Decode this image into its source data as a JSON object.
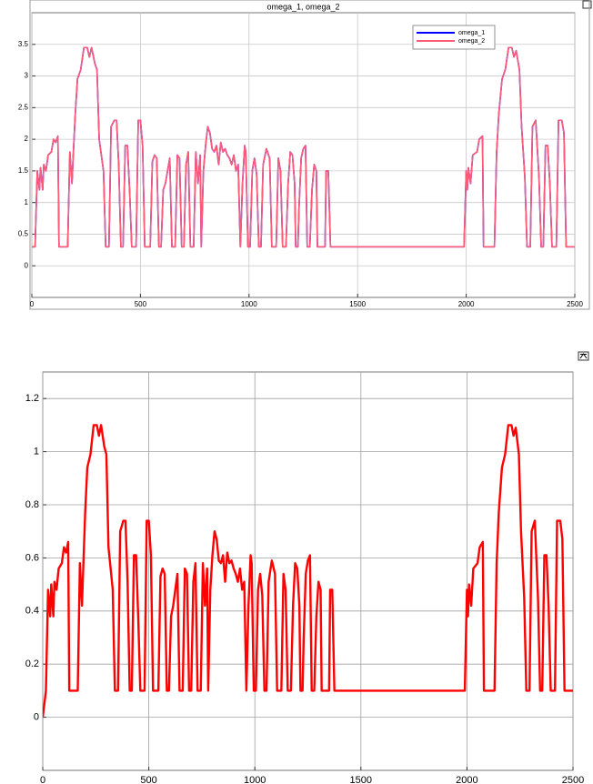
{
  "chart_data": [
    {
      "type": "line",
      "title": "omega_1, omega_2",
      "x": [
        0,
        15,
        25,
        35,
        40,
        50,
        55,
        65,
        75,
        90,
        100,
        110,
        120,
        125,
        165,
        175,
        185,
        190,
        200,
        210,
        225,
        240,
        255,
        265,
        275,
        290,
        300,
        310,
        330,
        340,
        355,
        365,
        380,
        390,
        400,
        410,
        420,
        430,
        440,
        450,
        460,
        480,
        490,
        500,
        510,
        520,
        545,
        555,
        565,
        575,
        585,
        595,
        605,
        615,
        625,
        635,
        645,
        660,
        670,
        680,
        690,
        700,
        710,
        720,
        730,
        745,
        755,
        765,
        775,
        780,
        790,
        800,
        810,
        820,
        830,
        840,
        850,
        860,
        870,
        880,
        890,
        900,
        910,
        920,
        930,
        940,
        950,
        960,
        970,
        980,
        985,
        995,
        1005,
        1015,
        1025,
        1035,
        1045,
        1055,
        1065,
        1080,
        1095,
        1105,
        1125,
        1135,
        1145,
        1155,
        1170,
        1180,
        1190,
        1200,
        1210,
        1215,
        1225,
        1230,
        1240,
        1250,
        1260,
        1268,
        1280,
        1290,
        1300,
        1310,
        1315,
        1350,
        1355,
        1365,
        1375,
        1990,
        2000,
        2005,
        2010,
        2020,
        2030,
        2050,
        2060,
        2075,
        2080,
        2130,
        2140,
        2150,
        2165,
        2180,
        2195,
        2210,
        2220,
        2230,
        2245,
        2255,
        2270,
        2280,
        2295,
        2305,
        2320,
        2335,
        2345,
        2355,
        2365,
        2375,
        2385,
        2395,
        2415,
        2425,
        2440,
        2450,
        2460,
        2500
      ],
      "series": [
        {
          "name": "omega_1",
          "color": "#0000ff",
          "values": [
            0.3,
            0.3,
            1.5,
            1.2,
            1.55,
            1.2,
            1.6,
            1.5,
            1.75,
            1.8,
            2.0,
            1.95,
            2.05,
            0.3,
            0.3,
            1.8,
            1.3,
            1.7,
            2.4,
            2.95,
            3.1,
            3.45,
            3.45,
            3.3,
            3.45,
            3.2,
            3.1,
            2.0,
            1.5,
            0.3,
            0.3,
            2.2,
            2.3,
            2.3,
            1.6,
            0.3,
            0.3,
            1.9,
            1.9,
            1.2,
            0.3,
            0.3,
            2.3,
            2.3,
            1.9,
            0.3,
            0.3,
            1.65,
            1.75,
            1.7,
            0.3,
            0.3,
            1.2,
            1.3,
            1.5,
            1.7,
            0.3,
            0.3,
            1.75,
            1.7,
            0.3,
            0.3,
            1.6,
            1.8,
            0.3,
            0.3,
            1.8,
            1.3,
            1.75,
            0.3,
            1.5,
            1.9,
            2.2,
            2.1,
            1.85,
            1.8,
            1.9,
            1.6,
            1.95,
            1.8,
            1.85,
            1.75,
            1.7,
            1.6,
            1.75,
            1.5,
            1.6,
            0.3,
            1.3,
            1.9,
            1.8,
            0.3,
            0.3,
            1.5,
            1.7,
            1.45,
            0.3,
            0.3,
            1.6,
            1.85,
            1.7,
            0.3,
            0.3,
            1.7,
            1.5,
            0.3,
            0.3,
            1.3,
            1.8,
            1.75,
            1.3,
            0.3,
            0.3,
            0.9,
            1.7,
            1.85,
            1.9,
            0.3,
            0.3,
            1.2,
            1.6,
            1.5,
            0.3,
            0.3,
            1.5,
            1.5,
            0.3,
            0.3,
            1.5,
            1.2,
            1.55,
            1.3,
            1.75,
            1.8,
            2.0,
            2.05,
            0.3,
            0.3,
            1.8,
            2.4,
            2.95,
            3.1,
            3.45,
            3.45,
            3.3,
            3.4,
            3.1,
            2.2,
            1.4,
            0.3,
            0.3,
            2.2,
            2.3,
            1.4,
            0.3,
            0.3,
            1.9,
            1.9,
            1.3,
            0.3,
            0.3,
            2.3,
            2.3,
            2.1,
            0.3,
            0.3
          ]
        },
        {
          "name": "omega_2",
          "color": "#ff5a78",
          "values": [
            0.3,
            0.3,
            1.5,
            1.2,
            1.55,
            1.2,
            1.6,
            1.5,
            1.75,
            1.8,
            2.0,
            1.95,
            2.05,
            0.3,
            0.3,
            1.8,
            1.3,
            1.7,
            2.4,
            2.95,
            3.1,
            3.45,
            3.45,
            3.3,
            3.45,
            3.2,
            3.1,
            2.0,
            1.5,
            0.3,
            0.3,
            2.2,
            2.3,
            2.3,
            1.6,
            0.3,
            0.3,
            1.9,
            1.9,
            1.2,
            0.3,
            0.3,
            2.3,
            2.3,
            1.9,
            0.3,
            0.3,
            1.65,
            1.75,
            1.7,
            0.3,
            0.3,
            1.2,
            1.3,
            1.5,
            1.7,
            0.3,
            0.3,
            1.75,
            1.7,
            0.3,
            0.3,
            1.6,
            1.8,
            0.3,
            0.3,
            1.8,
            1.3,
            1.75,
            0.3,
            1.5,
            1.9,
            2.2,
            2.1,
            1.85,
            1.8,
            1.9,
            1.6,
            1.95,
            1.8,
            1.85,
            1.75,
            1.7,
            1.6,
            1.75,
            1.5,
            1.6,
            0.3,
            1.3,
            1.9,
            1.8,
            0.3,
            0.3,
            1.5,
            1.7,
            1.45,
            0.3,
            0.3,
            1.6,
            1.85,
            1.7,
            0.3,
            0.3,
            1.7,
            1.5,
            0.3,
            0.3,
            1.3,
            1.8,
            1.75,
            1.3,
            0.3,
            0.3,
            0.9,
            1.7,
            1.85,
            1.9,
            0.3,
            0.3,
            1.2,
            1.6,
            1.5,
            0.3,
            0.3,
            1.5,
            1.5,
            0.3,
            0.3,
            1.5,
            1.2,
            1.55,
            1.3,
            1.75,
            1.8,
            2.0,
            2.05,
            0.3,
            0.3,
            1.8,
            2.4,
            2.95,
            3.1,
            3.45,
            3.45,
            3.3,
            3.4,
            3.1,
            2.2,
            1.4,
            0.3,
            0.3,
            2.2,
            2.3,
            1.4,
            0.3,
            0.3,
            1.9,
            1.9,
            1.3,
            0.3,
            0.3,
            2.3,
            2.3,
            2.1,
            0.3,
            0.3
          ]
        }
      ],
      "xlim": [
        0,
        2500
      ],
      "xticks": [
        0,
        500,
        1000,
        1500,
        2000,
        2500
      ],
      "ylim": [
        -0.5,
        4
      ],
      "yticks": [
        0,
        0.5,
        1,
        1.5,
        2,
        2.5,
        3,
        3.5
      ],
      "grid": true,
      "legend": "upper right"
    },
    {
      "type": "line",
      "x": [
        0,
        15,
        25,
        35,
        40,
        50,
        55,
        65,
        75,
        90,
        100,
        110,
        120,
        125,
        165,
        175,
        185,
        190,
        200,
        210,
        225,
        240,
        255,
        265,
        275,
        290,
        300,
        310,
        330,
        340,
        355,
        365,
        380,
        390,
        400,
        410,
        420,
        430,
        440,
        450,
        460,
        480,
        490,
        500,
        510,
        520,
        545,
        555,
        565,
        575,
        585,
        595,
        605,
        615,
        625,
        635,
        645,
        660,
        670,
        680,
        690,
        700,
        710,
        720,
        730,
        745,
        755,
        765,
        775,
        780,
        790,
        800,
        810,
        820,
        830,
        840,
        850,
        860,
        870,
        880,
        890,
        900,
        910,
        920,
        930,
        940,
        950,
        960,
        970,
        980,
        985,
        995,
        1005,
        1015,
        1025,
        1035,
        1045,
        1055,
        1065,
        1080,
        1095,
        1105,
        1125,
        1135,
        1145,
        1155,
        1170,
        1180,
        1190,
        1200,
        1210,
        1215,
        1225,
        1230,
        1240,
        1250,
        1260,
        1268,
        1280,
        1290,
        1300,
        1310,
        1315,
        1350,
        1355,
        1365,
        1375,
        1990,
        2000,
        2005,
        2010,
        2020,
        2030,
        2050,
        2060,
        2075,
        2080,
        2130,
        2140,
        2150,
        2165,
        2180,
        2195,
        2210,
        2220,
        2230,
        2245,
        2255,
        2270,
        2280,
        2295,
        2305,
        2320,
        2335,
        2345,
        2355,
        2365,
        2375,
        2385,
        2395,
        2415,
        2425,
        2440,
        2450,
        2460,
        2500
      ],
      "series": [
        {
          "color": "#ff0000",
          "values": [
            0,
            0.1,
            0.48,
            0.38,
            0.5,
            0.38,
            0.51,
            0.48,
            0.56,
            0.58,
            0.64,
            0.62,
            0.66,
            0.1,
            0.1,
            0.58,
            0.42,
            0.54,
            0.77,
            0.94,
            0.99,
            1.1,
            1.1,
            1.06,
            1.1,
            1.02,
            0.99,
            0.64,
            0.48,
            0.1,
            0.1,
            0.7,
            0.74,
            0.74,
            0.51,
            0.1,
            0.1,
            0.61,
            0.61,
            0.38,
            0.1,
            0.1,
            0.74,
            0.74,
            0.61,
            0.1,
            0.1,
            0.53,
            0.56,
            0.54,
            0.1,
            0.1,
            0.38,
            0.42,
            0.48,
            0.54,
            0.1,
            0.1,
            0.56,
            0.54,
            0.1,
            0.1,
            0.51,
            0.58,
            0.1,
            0.1,
            0.58,
            0.42,
            0.56,
            0.1,
            0.48,
            0.61,
            0.7,
            0.67,
            0.59,
            0.58,
            0.61,
            0.51,
            0.62,
            0.58,
            0.59,
            0.56,
            0.54,
            0.51,
            0.56,
            0.48,
            0.51,
            0.1,
            0.42,
            0.61,
            0.58,
            0.1,
            0.1,
            0.48,
            0.54,
            0.46,
            0.1,
            0.1,
            0.51,
            0.59,
            0.54,
            0.1,
            0.1,
            0.54,
            0.48,
            0.1,
            0.1,
            0.42,
            0.58,
            0.56,
            0.42,
            0.1,
            0.1,
            0.29,
            0.54,
            0.59,
            0.61,
            0.1,
            0.1,
            0.38,
            0.51,
            0.48,
            0.1,
            0.1,
            0.48,
            0.48,
            0.1,
            0.1,
            0.48,
            0.38,
            0.5,
            0.42,
            0.56,
            0.58,
            0.64,
            0.66,
            0.1,
            0.1,
            0.58,
            0.77,
            0.94,
            0.99,
            1.1,
            1.1,
            1.06,
            1.09,
            0.99,
            0.7,
            0.45,
            0.1,
            0.1,
            0.7,
            0.74,
            0.45,
            0.1,
            0.1,
            0.61,
            0.61,
            0.42,
            0.1,
            0.1,
            0.74,
            0.74,
            0.67,
            0.1,
            0.1
          ]
        }
      ],
      "xlim": [
        0,
        2500
      ],
      "xticks": [
        0,
        500,
        1000,
        1500,
        2000,
        2500
      ],
      "ylim": [
        -0.2,
        1.3
      ],
      "yticks": [
        0,
        0.2,
        0.4,
        0.6,
        0.8,
        1,
        1.2
      ],
      "grid": true
    }
  ]
}
